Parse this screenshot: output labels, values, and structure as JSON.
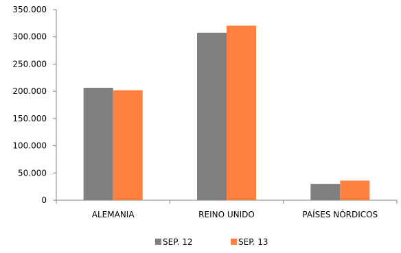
{
  "chart_data": {
    "type": "bar",
    "title": "",
    "xlabel": "",
    "ylabel": "",
    "categories": [
      "ALEMANIA",
      "REINO UNIDO",
      "PAÍSES NÓRDICOS"
    ],
    "series": [
      {
        "name": "SEP. 12",
        "color": "#808080",
        "values": [
          206500,
          307500,
          30000
        ]
      },
      {
        "name": "SEP. 13",
        "color": "#FF8040",
        "values": [
          202000,
          320500,
          36000
        ]
      }
    ],
    "ylim": [
      0,
      350000
    ],
    "yticks": [
      0,
      50000,
      100000,
      150000,
      200000,
      250000,
      300000,
      350000
    ],
    "ytick_labels": [
      "0",
      "50.000",
      "100.000",
      "150.000",
      "200.000",
      "250.000",
      "300.000",
      "350.000"
    ],
    "grid": false,
    "legend_position": "bottom"
  }
}
